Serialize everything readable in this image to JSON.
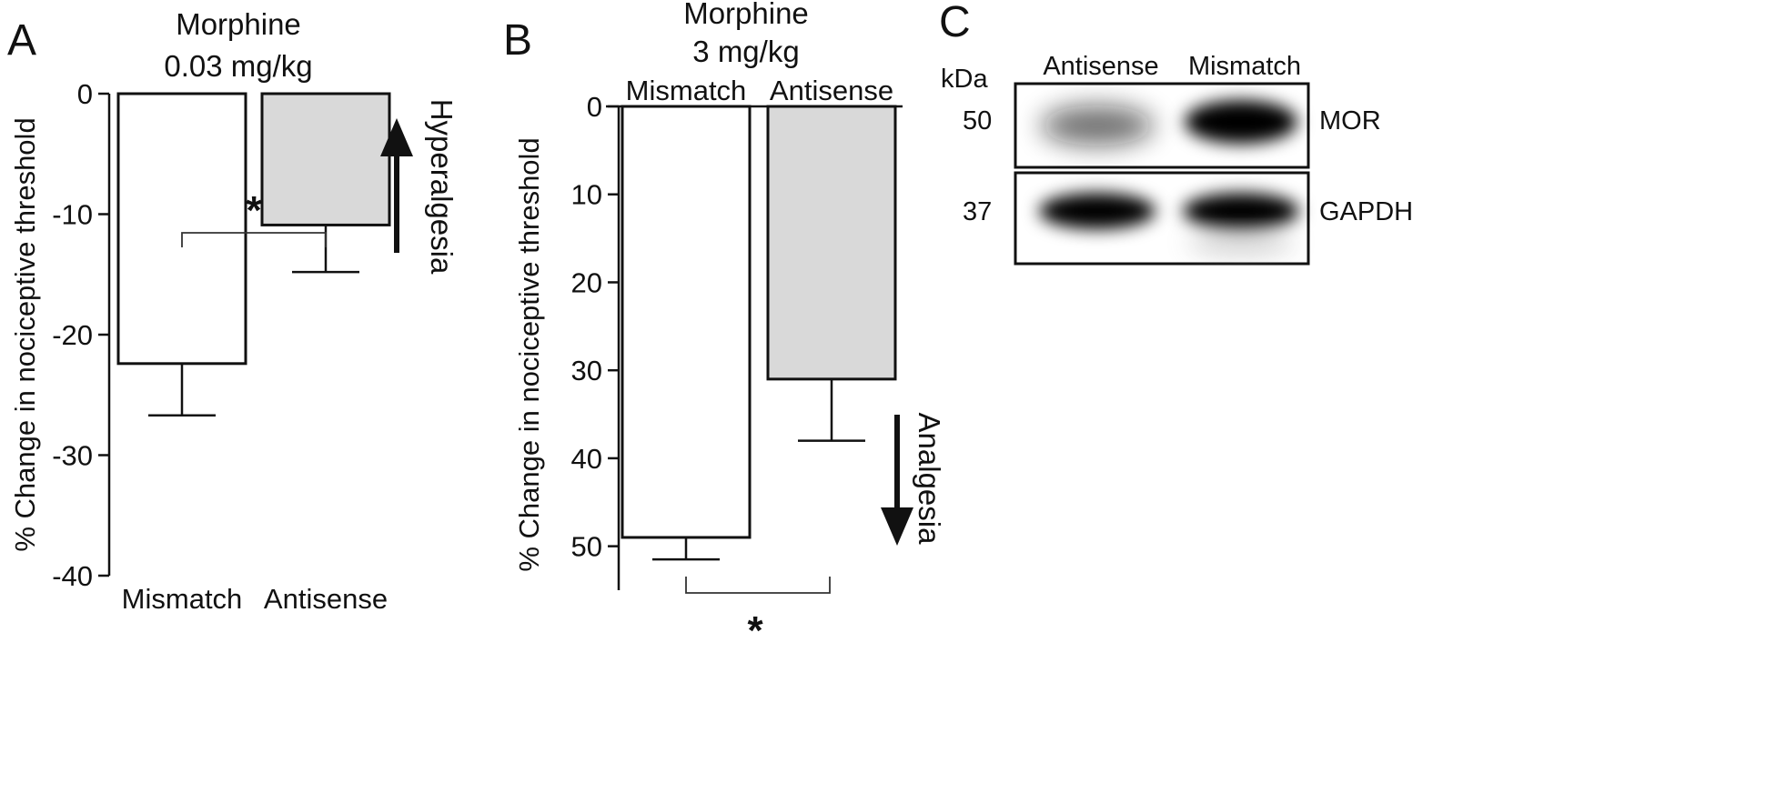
{
  "chart_data": [
    {
      "type": "bar",
      "panel_label": "A",
      "title": "Morphine",
      "subtitle": "0.03 mg/kg",
      "ylabel": "% Change in nociceptive threshold",
      "categories": [
        "Mismatch",
        "Antisense"
      ],
      "values": [
        -22.4,
        -10.9
      ],
      "errors": [
        4.3,
        3.9
      ],
      "colors": [
        "#ffffff",
        "#d9d9d9"
      ],
      "ylim": [
        0,
        -40
      ],
      "yticks": [
        0,
        -10,
        -20,
        -30,
        -40
      ],
      "ytick_labels": [
        "0",
        "-10",
        "-20",
        "-30",
        "-40"
      ],
      "significance": "*",
      "annotation": "Hyperalgesia",
      "annotation_direction": "up"
    },
    {
      "type": "bar",
      "panel_label": "B",
      "title": "Morphine",
      "subtitle": "3 mg/kg",
      "ylabel": "% Change in nociceptive threshold",
      "categories": [
        "Mismatch",
        "Antisense"
      ],
      "values": [
        49,
        31
      ],
      "errors": [
        2.5,
        7
      ],
      "colors": [
        "#ffffff",
        "#d9d9d9"
      ],
      "ylim": [
        0,
        55
      ],
      "yticks": [
        0,
        10,
        20,
        30,
        40,
        50
      ],
      "ytick_labels": [
        "0",
        "10",
        "20",
        "30",
        "40",
        "50"
      ],
      "category_labels_position": "top",
      "significance": "*",
      "annotation": "Analgesia",
      "annotation_direction": "down"
    }
  ],
  "blot": {
    "panel_label": "C",
    "unit_label": "kDa",
    "lanes": [
      "Antisense",
      "Mismatch"
    ],
    "rows": [
      {
        "marker": "50",
        "protein": "MOR",
        "intensity": [
          0.35,
          1.0
        ]
      },
      {
        "marker": "37",
        "protein": "GAPDH",
        "intensity": [
          1.0,
          1.0
        ]
      }
    ]
  }
}
